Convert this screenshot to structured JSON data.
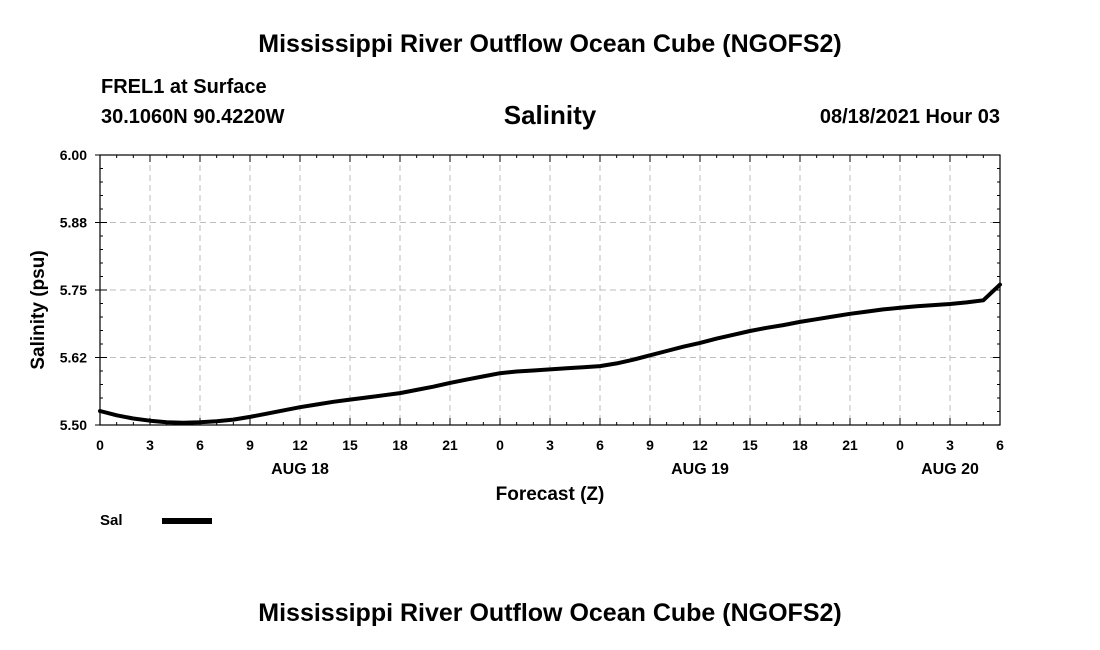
{
  "header": {
    "title": "Mississippi River Outflow Ocean Cube (NGOFS2)",
    "station": "FREL1 at Surface",
    "coords": "30.1060N  90.4220W",
    "variable": "Salinity",
    "datetime": "08/18/2021 Hour 03"
  },
  "footer": {
    "title": "Mississippi River Outflow Ocean Cube (NGOFS2)"
  },
  "chart_data": {
    "type": "line",
    "title": "Salinity",
    "xlabel": "Forecast (Z)",
    "ylabel": "Salinity (psu)",
    "xlim": [
      0,
      54
    ],
    "ylim": [
      5.5,
      6.0
    ],
    "grid": true,
    "x_ticks": [
      0,
      3,
      6,
      9,
      12,
      15,
      18,
      21,
      24,
      27,
      30,
      33,
      36,
      39,
      42,
      45,
      48,
      51,
      54
    ],
    "x_tick_labels": [
      "0",
      "3",
      "6",
      "9",
      "12",
      "15",
      "18",
      "21",
      "0",
      "3",
      "6",
      "9",
      "12",
      "15",
      "18",
      "21",
      "0",
      "3",
      "6"
    ],
    "y_ticks": [
      5.5,
      5.625,
      5.75,
      5.875,
      6.0
    ],
    "y_tick_labels": [
      "5.50",
      "5.62",
      "5.75",
      "5.88",
      "6.00"
    ],
    "day_labels": [
      {
        "x": 12,
        "label": "AUG 18"
      },
      {
        "x": 36,
        "label": "AUG 19"
      },
      {
        "x": 51,
        "label": "AUG 20"
      }
    ],
    "legend": {
      "position": "bottom-left",
      "entries": [
        {
          "label": "Sal",
          "color": "#000000"
        }
      ]
    },
    "series": [
      {
        "name": "Sal",
        "color": "#000000",
        "x": [
          0,
          1,
          2,
          3,
          4,
          5,
          6,
          7,
          8,
          9,
          10,
          11,
          12,
          13,
          14,
          15,
          16,
          17,
          18,
          19,
          20,
          21,
          22,
          23,
          24,
          25,
          26,
          27,
          28,
          29,
          30,
          31,
          32,
          33,
          34,
          35,
          36,
          37,
          38,
          39,
          40,
          41,
          42,
          43,
          44,
          45,
          46,
          47,
          48,
          49,
          50,
          51,
          52,
          53,
          54
        ],
        "values": [
          5.526,
          5.518,
          5.512,
          5.508,
          5.505,
          5.504,
          5.505,
          5.507,
          5.51,
          5.515,
          5.521,
          5.527,
          5.533,
          5.538,
          5.543,
          5.547,
          5.551,
          5.555,
          5.559,
          5.565,
          5.571,
          5.578,
          5.584,
          5.59,
          5.596,
          5.599,
          5.601,
          5.603,
          5.605,
          5.607,
          5.609,
          5.614,
          5.621,
          5.629,
          5.637,
          5.645,
          5.652,
          5.66,
          5.667,
          5.674,
          5.68,
          5.685,
          5.691,
          5.696,
          5.701,
          5.706,
          5.71,
          5.714,
          5.717,
          5.72,
          5.722,
          5.724,
          5.727,
          5.731,
          5.76
        ]
      }
    ]
  }
}
